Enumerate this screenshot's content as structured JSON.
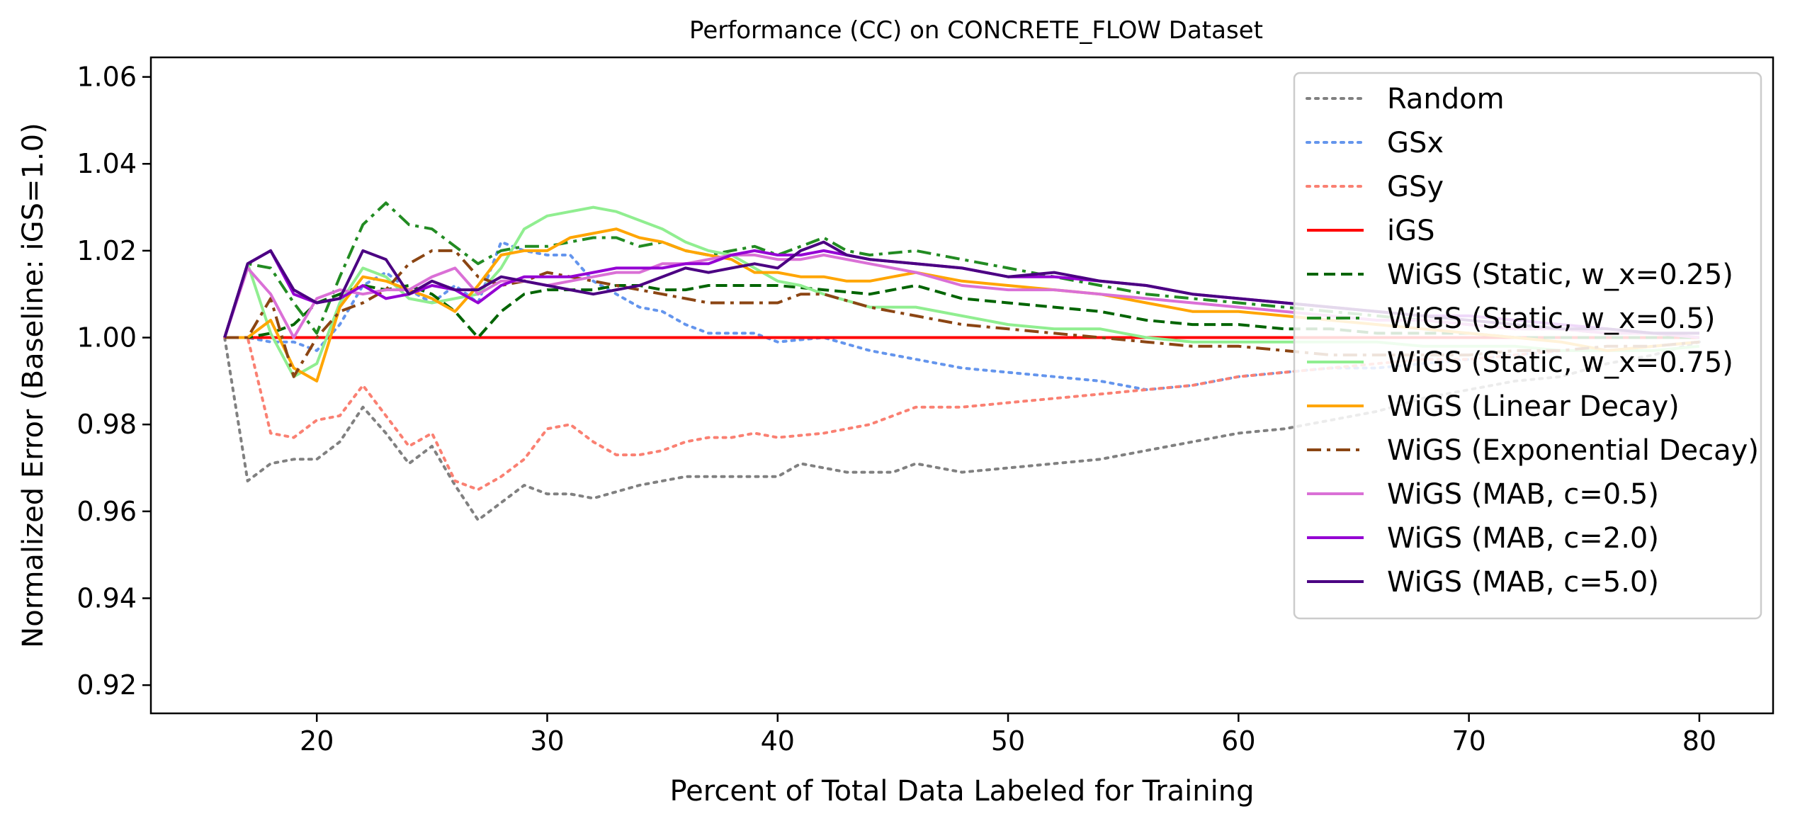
{
  "chart_data": {
    "type": "line",
    "title": "Performance (CC) on CONCRETE_FLOW Dataset",
    "xlabel": "Percent of Total Data Labeled for Training",
    "ylabel": "Normalized Error (Baseline: iGS=1.0)",
    "xlim": [
      12.8,
      83.2
    ],
    "ylim": [
      0.9135,
      1.0645
    ],
    "xticks": [
      20,
      30,
      40,
      50,
      60,
      70,
      80
    ],
    "yticks": [
      0.92,
      0.94,
      0.96,
      0.98,
      1.0,
      1.02,
      1.04,
      1.06
    ],
    "xtick_labels": [
      "20",
      "30",
      "40",
      "50",
      "60",
      "70",
      "80"
    ],
    "ytick_labels": [
      "0.92",
      "0.94",
      "0.96",
      "0.98",
      "1.00",
      "1.02",
      "1.04",
      "1.06"
    ],
    "grid": false,
    "legend_position": "top-right",
    "series": [
      {
        "name": "Random",
        "color": "#808080",
        "dash": "dotted",
        "x": [
          16,
          17,
          18,
          19,
          20,
          21,
          22,
          23,
          24,
          25,
          26,
          27,
          28,
          29,
          30,
          31,
          32,
          34,
          36,
          38,
          40,
          41,
          43,
          45,
          46,
          48,
          50,
          52,
          54,
          56,
          58,
          60,
          62,
          64,
          66,
          68,
          70,
          72,
          74,
          76,
          78,
          80
        ],
        "y": [
          1.0,
          0.967,
          0.971,
          0.972,
          0.972,
          0.976,
          0.984,
          0.978,
          0.971,
          0.975,
          0.966,
          0.958,
          0.962,
          0.966,
          0.964,
          0.964,
          0.963,
          0.966,
          0.968,
          0.968,
          0.968,
          0.971,
          0.969,
          0.969,
          0.971,
          0.969,
          0.97,
          0.971,
          0.972,
          0.974,
          0.976,
          0.978,
          0.979,
          0.981,
          0.983,
          0.986,
          0.988,
          0.99,
          0.991,
          0.994,
          0.996,
          0.999
        ]
      },
      {
        "name": "GSx",
        "color": "#6495ED",
        "dash": "dotted",
        "x": [
          16,
          17,
          18,
          19,
          20,
          21,
          22,
          23,
          24,
          25,
          26,
          27,
          28,
          29,
          30,
          31,
          32,
          33,
          34,
          35,
          36,
          37,
          38,
          39,
          40,
          42,
          44,
          46,
          48,
          50,
          52,
          54,
          56,
          58,
          60,
          62,
          64,
          66,
          68,
          70,
          72,
          74,
          76,
          78,
          80
        ],
        "y": [
          1.0,
          1.0,
          0.999,
          0.999,
          0.997,
          1.003,
          1.012,
          1.015,
          1.011,
          1.008,
          1.012,
          1.008,
          1.022,
          1.02,
          1.019,
          1.019,
          1.013,
          1.01,
          1.007,
          1.006,
          1.003,
          1.001,
          1.001,
          1.001,
          0.999,
          1.0,
          0.997,
          0.995,
          0.993,
          0.992,
          0.991,
          0.99,
          0.988,
          0.989,
          0.991,
          0.992,
          0.993,
          0.993,
          0.994,
          0.995,
          0.996,
          0.997,
          0.997,
          0.998,
          0.999
        ]
      },
      {
        "name": "GSy",
        "color": "#FA8072",
        "dash": "dotted",
        "x": [
          16,
          17,
          18,
          19,
          20,
          21,
          22,
          23,
          24,
          25,
          26,
          27,
          28,
          29,
          30,
          31,
          32,
          33,
          34,
          35,
          36,
          37,
          38,
          39,
          40,
          42,
          44,
          46,
          48,
          50,
          52,
          54,
          56,
          58,
          60,
          62,
          64,
          66,
          68,
          70,
          72,
          74,
          76,
          78,
          80
        ],
        "y": [
          1.0,
          1.0,
          0.978,
          0.977,
          0.981,
          0.982,
          0.989,
          0.982,
          0.975,
          0.978,
          0.967,
          0.965,
          0.968,
          0.972,
          0.979,
          0.98,
          0.976,
          0.973,
          0.973,
          0.974,
          0.976,
          0.977,
          0.977,
          0.978,
          0.977,
          0.978,
          0.98,
          0.984,
          0.984,
          0.985,
          0.986,
          0.987,
          0.988,
          0.989,
          0.991,
          0.992,
          0.993,
          0.994,
          0.995,
          0.995,
          0.996,
          0.997,
          0.997,
          0.998,
          0.999
        ]
      },
      {
        "name": "iGS",
        "color": "#FF0000",
        "dash": "solid",
        "x": [
          16,
          80
        ],
        "y": [
          1.0,
          1.0
        ]
      },
      {
        "name": "WiGS (Static, w_x=0.25)",
        "color": "#006400",
        "dash": "dashed",
        "x": [
          16,
          17,
          18,
          19,
          20,
          21,
          22,
          23,
          24,
          25,
          26,
          27,
          28,
          29,
          30,
          31,
          32,
          33,
          34,
          35,
          36,
          37,
          38,
          39,
          40,
          42,
          44,
          46,
          48,
          50,
          52,
          54,
          56,
          58,
          60,
          62,
          64,
          66,
          68,
          70,
          72,
          74,
          76,
          78,
          80
        ],
        "y": [
          1.0,
          1.0,
          1.001,
          1.003,
          1.008,
          1.01,
          1.012,
          1.011,
          1.012,
          1.01,
          1.006,
          1.0,
          1.006,
          1.01,
          1.011,
          1.011,
          1.011,
          1.012,
          1.012,
          1.011,
          1.011,
          1.012,
          1.012,
          1.012,
          1.012,
          1.011,
          1.01,
          1.012,
          1.009,
          1.008,
          1.007,
          1.006,
          1.004,
          1.003,
          1.003,
          1.002,
          1.002,
          1.001,
          1.001,
          1.001,
          1.0,
          1.0,
          1.0,
          1.0,
          1.0
        ]
      },
      {
        "name": "WiGS (Static, w_x=0.5)",
        "color": "#228B22",
        "dash": "dashdot",
        "x": [
          16,
          17,
          18,
          19,
          20,
          21,
          22,
          23,
          24,
          25,
          26,
          27,
          28,
          29,
          30,
          31,
          32,
          33,
          34,
          35,
          36,
          37,
          38,
          39,
          40,
          41,
          42,
          43,
          44,
          46,
          48,
          50,
          52,
          54,
          56,
          58,
          60,
          62,
          64,
          66,
          68,
          70,
          72,
          74,
          76,
          78,
          80
        ],
        "y": [
          1.0,
          1.017,
          1.016,
          1.008,
          1.001,
          1.014,
          1.026,
          1.031,
          1.026,
          1.025,
          1.021,
          1.017,
          1.02,
          1.021,
          1.021,
          1.022,
          1.023,
          1.023,
          1.021,
          1.022,
          1.02,
          1.019,
          1.02,
          1.021,
          1.019,
          1.021,
          1.023,
          1.02,
          1.019,
          1.02,
          1.018,
          1.016,
          1.014,
          1.012,
          1.01,
          1.009,
          1.008,
          1.007,
          1.006,
          1.005,
          1.004,
          1.003,
          1.002,
          1.002,
          1.001,
          1.001,
          1.0
        ]
      },
      {
        "name": "WiGS (Static, w_x=0.75)",
        "color": "#90EE90",
        "dash": "solid",
        "x": [
          16,
          17,
          18,
          19,
          20,
          21,
          22,
          23,
          24,
          25,
          26,
          27,
          28,
          29,
          30,
          31,
          32,
          33,
          34,
          35,
          36,
          37,
          38,
          39,
          40,
          41,
          42,
          44,
          46,
          48,
          50,
          52,
          54,
          56,
          58,
          60,
          62,
          64,
          66,
          68,
          70,
          72,
          74,
          76,
          78,
          80
        ],
        "y": [
          1.0,
          1.017,
          1.001,
          0.991,
          0.994,
          1.008,
          1.016,
          1.014,
          1.009,
          1.008,
          1.009,
          1.01,
          1.016,
          1.025,
          1.028,
          1.029,
          1.03,
          1.029,
          1.027,
          1.025,
          1.022,
          1.02,
          1.019,
          1.016,
          1.013,
          1.012,
          1.01,
          1.007,
          1.007,
          1.005,
          1.003,
          1.002,
          1.002,
          1.0,
          0.999,
          0.999,
          0.999,
          0.999,
          0.999,
          0.998,
          0.998,
          0.998,
          0.997,
          0.997,
          0.997,
          0.998
        ]
      },
      {
        "name": "WiGS (Linear Decay)",
        "color": "#FFA500",
        "dash": "solid",
        "x": [
          16,
          17,
          18,
          19,
          20,
          21,
          22,
          23,
          24,
          25,
          26,
          27,
          28,
          29,
          30,
          31,
          32,
          33,
          34,
          35,
          36,
          37,
          38,
          39,
          40,
          41,
          42,
          43,
          44,
          45,
          46,
          48,
          50,
          52,
          54,
          56,
          58,
          60,
          62,
          64,
          66,
          68,
          70,
          72,
          74,
          76,
          78,
          80
        ],
        "y": [
          1.0,
          1.0,
          1.004,
          0.993,
          0.99,
          1.007,
          1.014,
          1.013,
          1.011,
          1.009,
          1.006,
          1.012,
          1.019,
          1.02,
          1.02,
          1.023,
          1.024,
          1.025,
          1.023,
          1.022,
          1.02,
          1.019,
          1.018,
          1.015,
          1.015,
          1.014,
          1.014,
          1.013,
          1.013,
          1.014,
          1.015,
          1.013,
          1.012,
          1.011,
          1.01,
          1.008,
          1.006,
          1.006,
          1.005,
          1.004,
          1.003,
          1.002,
          1.001,
          1.0,
          0.999,
          0.997,
          0.998,
          0.999
        ]
      },
      {
        "name": "WiGS (Exponential Decay)",
        "color": "#8B4513",
        "dash": "dashdot",
        "x": [
          16,
          17,
          18,
          19,
          20,
          21,
          22,
          23,
          24,
          25,
          26,
          27,
          28,
          29,
          30,
          31,
          32,
          33,
          34,
          35,
          36,
          37,
          38,
          39,
          40,
          41,
          42,
          44,
          46,
          48,
          50,
          52,
          54,
          56,
          58,
          60,
          62,
          64,
          66,
          68,
          70,
          72,
          74,
          76,
          78,
          80
        ],
        "y": [
          1.0,
          1.0,
          1.009,
          0.991,
          1.0,
          1.006,
          1.008,
          1.011,
          1.017,
          1.02,
          1.02,
          1.014,
          1.012,
          1.013,
          1.015,
          1.014,
          1.013,
          1.012,
          1.011,
          1.01,
          1.009,
          1.008,
          1.008,
          1.008,
          1.008,
          1.01,
          1.01,
          1.007,
          1.005,
          1.003,
          1.002,
          1.001,
          1.0,
          0.999,
          0.998,
          0.998,
          0.997,
          0.996,
          0.996,
          0.996,
          0.996,
          0.997,
          0.997,
          0.998,
          0.998,
          0.999
        ]
      },
      {
        "name": "WiGS (MAB, c=0.5)",
        "color": "#DA70D6",
        "dash": "solid",
        "x": [
          16,
          17,
          18,
          19,
          20,
          21,
          22,
          23,
          24,
          25,
          26,
          27,
          28,
          29,
          30,
          31,
          32,
          33,
          34,
          35,
          36,
          37,
          38,
          39,
          40,
          41,
          42,
          44,
          46,
          48,
          50,
          52,
          54,
          56,
          58,
          60,
          62,
          64,
          66,
          68,
          70,
          72,
          74,
          76,
          78,
          80
        ],
        "y": [
          1.0,
          1.016,
          1.01,
          1.0,
          1.009,
          1.011,
          1.01,
          1.011,
          1.011,
          1.014,
          1.016,
          1.01,
          1.013,
          1.013,
          1.012,
          1.013,
          1.014,
          1.015,
          1.015,
          1.017,
          1.017,
          1.018,
          1.019,
          1.019,
          1.018,
          1.018,
          1.019,
          1.017,
          1.015,
          1.012,
          1.011,
          1.011,
          1.01,
          1.009,
          1.008,
          1.007,
          1.006,
          1.005,
          1.004,
          1.004,
          1.003,
          1.002,
          1.002,
          1.001,
          1.001,
          1.0
        ]
      },
      {
        "name": "WiGS (MAB, c=2.0)",
        "color": "#9400D3",
        "dash": "solid",
        "x": [
          16,
          17,
          18,
          19,
          20,
          21,
          22,
          23,
          24,
          25,
          26,
          27,
          28,
          29,
          30,
          31,
          32,
          33,
          34,
          35,
          36,
          37,
          38,
          39,
          40,
          41,
          42,
          44,
          46,
          48,
          50,
          52,
          54,
          56,
          58,
          60,
          62,
          64,
          66,
          68,
          70,
          72,
          74,
          76,
          78,
          80
        ],
        "y": [
          1.0,
          1.017,
          1.02,
          1.01,
          1.008,
          1.009,
          1.012,
          1.009,
          1.01,
          1.012,
          1.011,
          1.008,
          1.012,
          1.014,
          1.014,
          1.014,
          1.015,
          1.016,
          1.016,
          1.016,
          1.017,
          1.017,
          1.019,
          1.02,
          1.019,
          1.019,
          1.02,
          1.018,
          1.017,
          1.016,
          1.014,
          1.014,
          1.013,
          1.012,
          1.01,
          1.009,
          1.008,
          1.007,
          1.006,
          1.005,
          1.005,
          1.004,
          1.003,
          1.002,
          1.001,
          1.001
        ]
      },
      {
        "name": "WiGS (MAB, c=5.0)",
        "color": "#4B0082",
        "dash": "solid",
        "x": [
          16,
          17,
          18,
          19,
          20,
          21,
          22,
          23,
          24,
          25,
          26,
          27,
          28,
          29,
          30,
          31,
          32,
          33,
          34,
          35,
          36,
          37,
          38,
          39,
          40,
          41,
          42,
          43,
          44,
          46,
          48,
          50,
          52,
          54,
          56,
          58,
          60,
          62,
          64,
          66,
          68,
          70,
          72,
          74,
          76,
          78,
          80
        ],
        "y": [
          1.0,
          1.017,
          1.02,
          1.011,
          1.008,
          1.009,
          1.02,
          1.018,
          1.01,
          1.013,
          1.011,
          1.011,
          1.014,
          1.013,
          1.012,
          1.011,
          1.01,
          1.011,
          1.012,
          1.014,
          1.016,
          1.015,
          1.016,
          1.017,
          1.016,
          1.02,
          1.022,
          1.019,
          1.018,
          1.017,
          1.016,
          1.014,
          1.015,
          1.013,
          1.012,
          1.01,
          1.009,
          1.008,
          1.007,
          1.006,
          1.005,
          1.004,
          1.003,
          1.002,
          1.002,
          1.001,
          1.001
        ]
      }
    ]
  }
}
